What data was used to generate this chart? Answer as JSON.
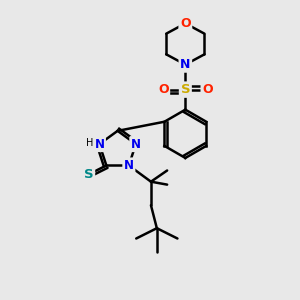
{
  "background_color": "#e8e8e8",
  "bond_color": "#000000",
  "atom_colors": {
    "O": "#ff2200",
    "N": "#0000ee",
    "S_sulfonyl": "#ccaa00",
    "S_thiol": "#008888",
    "C": "#000000"
  },
  "figsize": [
    3.0,
    3.0
  ],
  "dpi": 100,
  "xlim": [
    0,
    10
  ],
  "ylim": [
    0,
    10
  ]
}
